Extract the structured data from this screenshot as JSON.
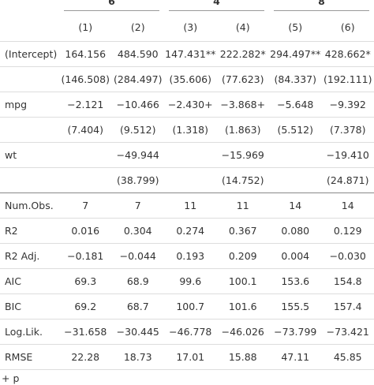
{
  "table": {
    "groups": [
      "6",
      "4",
      "8"
    ],
    "columns": [
      "(1)",
      "(2)",
      "(3)",
      "(4)",
      "(5)",
      "(6)"
    ],
    "rows": [
      [
        "(Intercept)",
        "164.156",
        "484.590",
        "147.431**",
        "222.282*",
        "294.497**",
        "428.662*"
      ],
      [
        null,
        "(146.508)",
        "(284.497)",
        "(35.606)",
        "(77.623)",
        "(84.337)",
        "(192.111)"
      ],
      [
        "mpg",
        "−2.121",
        "−10.466",
        "−2.430+",
        "−3.868+",
        "−5.648",
        "−9.392"
      ],
      [
        null,
        "(7.404)",
        "(9.512)",
        "(1.318)",
        "(1.863)",
        "(5.512)",
        "(7.378)"
      ],
      [
        "wt",
        null,
        "−49.944",
        null,
        "−15.969",
        null,
        "−19.410"
      ],
      [
        null,
        null,
        "(38.799)",
        null,
        "(14.752)",
        null,
        "(24.871)"
      ]
    ],
    "stats": [
      [
        "Num.Obs.",
        "7",
        "7",
        "11",
        "11",
        "14",
        "14"
      ],
      [
        "R2",
        "0.016",
        "0.304",
        "0.274",
        "0.367",
        "0.080",
        "0.129"
      ],
      [
        "R2 Adj.",
        "−0.181",
        "−0.044",
        "0.193",
        "0.209",
        "0.004",
        "−0.030"
      ],
      [
        "AIC",
        "69.3",
        "68.9",
        "99.6",
        "100.1",
        "153.6",
        "154.8"
      ],
      [
        "BIC",
        "69.2",
        "68.7",
        "100.7",
        "101.6",
        "155.5",
        "157.4"
      ],
      [
        "Log.Lik.",
        "−31.658",
        "−30.445",
        "−46.778",
        "−46.026",
        "−73.799",
        "−73.421"
      ],
      [
        "RMSE",
        "22.28",
        "18.73",
        "17.01",
        "15.88",
        "47.11",
        "45.85"
      ]
    ],
    "footnote": "+ p"
  }
}
